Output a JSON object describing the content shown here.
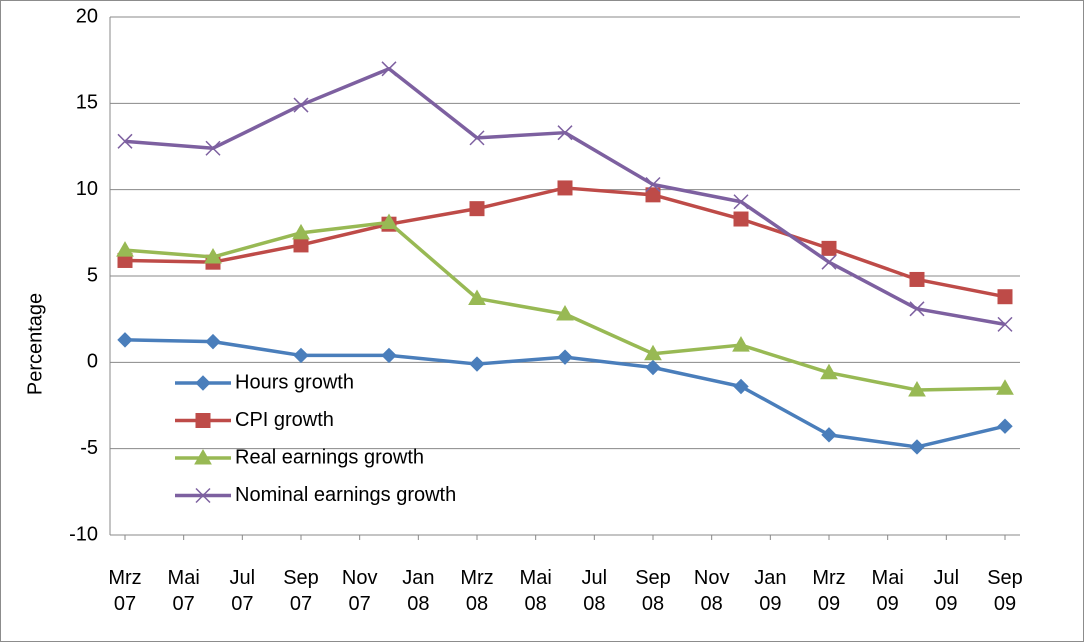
{
  "chart_data": {
    "type": "line",
    "y_label": "Percentage",
    "x": [
      "2007-03",
      "2007-06",
      "2007-09",
      "2007-12",
      "2008-03",
      "2008-06",
      "2008-09",
      "2008-12",
      "2009-03",
      "2009-06",
      "2009-09"
    ],
    "xlim": [
      "2007-03",
      "2009-09"
    ],
    "xticks": [
      {
        "value": "2007-03",
        "label": "Mrz\n07"
      },
      {
        "value": "2007-05",
        "label": "Mai\n07"
      },
      {
        "value": "2007-07",
        "label": "Jul\n07"
      },
      {
        "value": "2007-09",
        "label": "Sep\n07"
      },
      {
        "value": "2007-11",
        "label": "Nov\n07"
      },
      {
        "value": "2008-01",
        "label": "Jan\n08"
      },
      {
        "value": "2008-03",
        "label": "Mrz\n08"
      },
      {
        "value": "2008-05",
        "label": "Mai\n08"
      },
      {
        "value": "2008-07",
        "label": "Jul\n08"
      },
      {
        "value": "2008-09",
        "label": "Sep\n08"
      },
      {
        "value": "2008-11",
        "label": "Nov\n08"
      },
      {
        "value": "2009-01",
        "label": "Jan\n09"
      },
      {
        "value": "2009-03",
        "label": "Mrz\n09"
      },
      {
        "value": "2009-05",
        "label": "Mai\n09"
      },
      {
        "value": "2009-07",
        "label": "Jul\n09"
      },
      {
        "value": "2009-09",
        "label": "Sep\n09"
      }
    ],
    "ylim": [
      -10,
      20
    ],
    "yticks": [
      -10,
      -5,
      0,
      5,
      10,
      15,
      20
    ],
    "grid": true,
    "legend": "left",
    "series": [
      {
        "name": "Hours growth",
        "color": "#4a7ebb",
        "marker": "diamond",
        "values": [
          1.3,
          1.2,
          0.4,
          0.4,
          -0.1,
          0.3,
          -0.3,
          -1.4,
          -4.2,
          -4.9,
          -3.7
        ]
      },
      {
        "name": "CPI growth",
        "color": "#be4b48",
        "marker": "square",
        "values": [
          5.9,
          5.8,
          6.8,
          8.0,
          8.9,
          10.1,
          9.7,
          8.3,
          6.6,
          4.8,
          3.8
        ]
      },
      {
        "name": "Real earnings growth",
        "color": "#98b954",
        "marker": "triangle",
        "values": [
          6.5,
          6.1,
          7.5,
          8.1,
          3.7,
          2.8,
          0.5,
          1.0,
          -0.6,
          -1.6,
          -1.5
        ]
      },
      {
        "name": "Nominal earnings growth",
        "color": "#7d60a0",
        "marker": "x",
        "values": [
          12.8,
          12.4,
          14.9,
          17.0,
          13.0,
          13.3,
          10.3,
          9.3,
          5.8,
          3.1,
          2.2
        ]
      }
    ]
  }
}
